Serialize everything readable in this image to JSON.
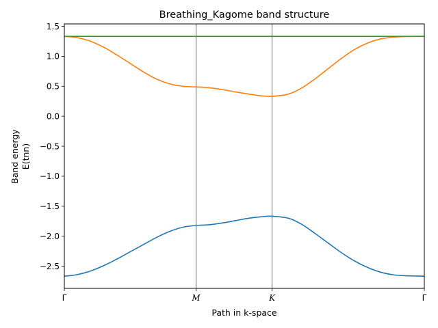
{
  "chart_data": {
    "type": "line",
    "title": "Breathing_Kagome band structure",
    "xlabel": "Path in k-space",
    "ylabel_lines": [
      "Band energy",
      "E(tnn)"
    ],
    "ylim": [
      -2.87,
      1.54
    ],
    "y_ticks": [
      -2.5,
      -2.0,
      -1.5,
      -1.0,
      -0.5,
      0.0,
      0.5,
      1.0,
      1.5
    ],
    "y_tick_labels": [
      "−2.5",
      "−2.0",
      "−1.5",
      "−1.0",
      "−0.5",
      "0.0",
      "0.5",
      "1.0",
      "1.5"
    ],
    "x_ticks": [
      {
        "label": "Γ",
        "pos": 0,
        "italic": false
      },
      {
        "label": "M",
        "pos": 1,
        "italic": true
      },
      {
        "label": "K",
        "pos": 1.577,
        "italic": true
      },
      {
        "label": "Γ",
        "pos": 2.732,
        "italic": false
      }
    ],
    "xlim": [
      0,
      2.732
    ],
    "vertical_lines_at": [
      1,
      1.577
    ],
    "grid": false,
    "legend": "none",
    "series": [
      {
        "color": "#1f77b4",
        "x": [
          0,
          0.1,
          0.2,
          0.3,
          0.4,
          0.5,
          0.6,
          0.7,
          0.8,
          0.9,
          1.0,
          1.1,
          1.2,
          1.3,
          1.4,
          1.5,
          1.577,
          1.7,
          1.8,
          1.9,
          2.0,
          2.1,
          2.2,
          2.3,
          2.4,
          2.5,
          2.6,
          2.732
        ],
        "y": [
          -2.667,
          -2.64,
          -2.58,
          -2.49,
          -2.38,
          -2.26,
          -2.14,
          -2.02,
          -1.92,
          -1.85,
          -1.82,
          -1.81,
          -1.78,
          -1.74,
          -1.7,
          -1.675,
          -1.667,
          -1.7,
          -1.8,
          -1.95,
          -2.11,
          -2.27,
          -2.41,
          -2.52,
          -2.6,
          -2.645,
          -2.66,
          -2.667
        ]
      },
      {
        "color": "#ff7f0e",
        "x": [
          0,
          0.1,
          0.2,
          0.3,
          0.4,
          0.5,
          0.6,
          0.7,
          0.8,
          0.9,
          1.0,
          1.1,
          1.2,
          1.3,
          1.4,
          1.5,
          1.577,
          1.7,
          1.8,
          1.9,
          2.0,
          2.1,
          2.2,
          2.3,
          2.4,
          2.5,
          2.6,
          2.732
        ],
        "y": [
          1.333,
          1.31,
          1.25,
          1.15,
          1.02,
          0.88,
          0.74,
          0.62,
          0.54,
          0.5,
          0.49,
          0.475,
          0.445,
          0.405,
          0.37,
          0.34,
          0.333,
          0.37,
          0.47,
          0.62,
          0.79,
          0.96,
          1.11,
          1.22,
          1.29,
          1.32,
          1.33,
          1.333
        ]
      },
      {
        "color": "#2ca02c",
        "x": [
          0,
          2.732
        ],
        "y": [
          1.333,
          1.333
        ]
      }
    ]
  }
}
